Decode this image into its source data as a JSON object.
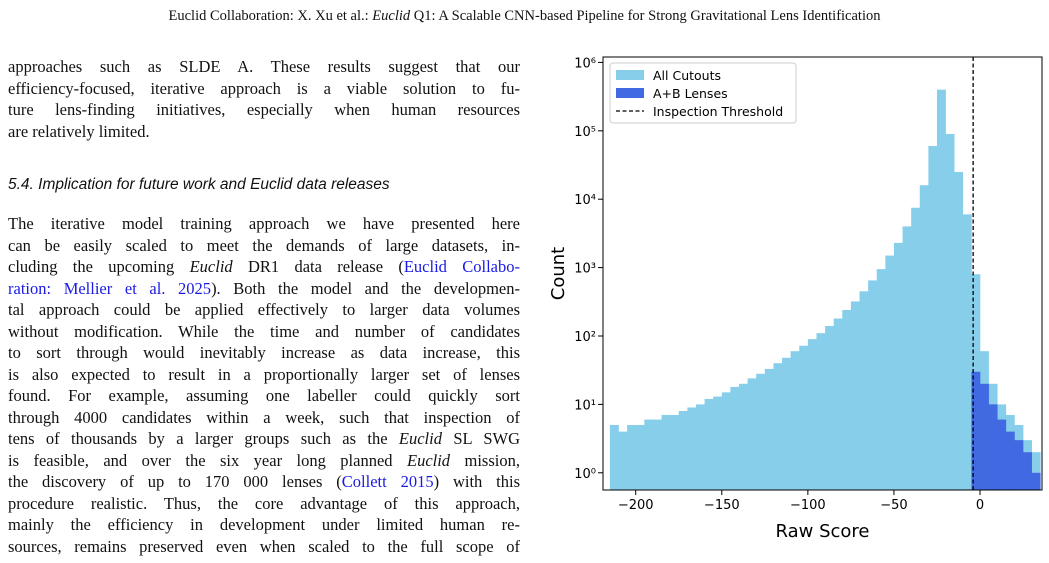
{
  "document": {
    "header": [
      "Euclid Collaboration: X. Xu et al.: ",
      {
        "text": "Euclid",
        "style": "italic"
      },
      " Q1: A Scalable CNN-based Pipeline for Strong Gravitational Lens Identification"
    ],
    "paragraph_1": [
      [
        "approaches such as SLDE A. These results suggest that our"
      ],
      [
        "efficiency-focused, iterative approach is a viable solution to fu-"
      ],
      [
        "ture lens-finding initiatives, especially when human resources"
      ],
      [
        "are relatively limited."
      ]
    ],
    "heading": "5.4. Implication for future work and Euclid data releases",
    "paragraph_2": [
      [
        "The iterative model training approach we have presented here"
      ],
      [
        "can be easily scaled to meet the demands of large datasets, in-"
      ],
      [
        "cluding the upcoming ",
        {
          "text": "Euclid",
          "style": "italic"
        },
        " DR1 data release (",
        {
          "text": "Euclid Collabo-",
          "style": "link"
        }
      ],
      [
        {
          "text": "ration: Mellier et al. 2025",
          "style": "link"
        },
        "). Both the model and the developmen-"
      ],
      [
        "tal approach could be applied effectively to larger data volumes"
      ],
      [
        "without modification. While the time and number of candidates"
      ],
      [
        "to sort through would inevitably increase as data increase, this"
      ],
      [
        "is also expected to result in a proportionally larger set of lenses"
      ],
      [
        "found. For example, assuming one labeller could quickly sort"
      ],
      [
        "through 4000 candidates within a week, such that inspection of"
      ],
      [
        "tens of thousands by a larger groups such as the ",
        {
          "text": "Euclid",
          "style": "italic"
        },
        " SL SWG"
      ],
      [
        "is feasible, and over the six year long planned ",
        {
          "text": "Euclid",
          "style": "italic"
        },
        " mission,"
      ],
      [
        "the discovery of up to 170 000 lenses (",
        {
          "text": "Collett 2015",
          "style": "link"
        },
        ") with this"
      ],
      [
        "procedure realistic. Thus, the core advantage of this approach,"
      ],
      [
        "mainly the efficiency in development under limited human re-"
      ],
      [
        "sources, remains preserved even when scaled to the full scope of"
      ]
    ]
  },
  "chart_data": {
    "type": "histogram",
    "xlabel": "Raw Score",
    "ylabel": "Count",
    "log_y": true,
    "legend": "upper left",
    "xlim": [
      -219,
      36
    ],
    "ylim": [
      0.56,
      1200000
    ],
    "xticks": [
      {
        "value": -200,
        "label": "−200"
      },
      {
        "value": -150,
        "label": "−150"
      },
      {
        "value": -100,
        "label": "−100"
      },
      {
        "value": -50,
        "label": "−50"
      },
      0
    ],
    "yticks": [
      {
        "value": 1,
        "label": "10⁰"
      },
      {
        "value": 10,
        "label": "10¹"
      },
      {
        "value": 100,
        "label": "10²"
      },
      {
        "value": 1000,
        "label": "10³"
      },
      {
        "value": 10000,
        "label": "10⁴"
      },
      {
        "value": 100000,
        "label": "10⁵"
      },
      {
        "value": 1000000,
        "label": "10⁶"
      }
    ],
    "series": [
      {
        "name": "All Cutouts",
        "color": "#87ceeb",
        "bins": [
          -215,
          -210,
          -205,
          -200,
          -195,
          -190,
          -185,
          -180,
          -175,
          -170,
          -165,
          -160,
          -155,
          -150,
          -145,
          -140,
          -135,
          -130,
          -125,
          -120,
          -115,
          -110,
          -105,
          -100,
          -95,
          -90,
          -85,
          -80,
          -75,
          -70,
          -65,
          -60,
          -55,
          -50,
          -45,
          -40,
          -35,
          -30,
          -25,
          -20,
          -15,
          -10,
          -5,
          0,
          5,
          10,
          15,
          20,
          25,
          30,
          35
        ],
        "values": [
          5,
          4,
          5,
          5,
          6,
          6,
          7,
          7,
          8,
          9,
          10,
          12,
          13,
          15,
          18,
          20,
          24,
          28,
          33,
          40,
          48,
          60,
          72,
          90,
          110,
          140,
          180,
          240,
          320,
          450,
          650,
          950,
          1500,
          2300,
          4000,
          7500,
          16000,
          60000,
          400000,
          90000,
          25000,
          6000,
          800,
          60,
          20,
          10,
          7,
          5,
          3,
          2
        ]
      },
      {
        "name": "A+B Lenses",
        "color": "#4169e1",
        "bins": [
          -5,
          0,
          5,
          10,
          15,
          20,
          25,
          30,
          35
        ],
        "values": [
          30,
          20,
          10,
          6,
          4,
          3,
          2,
          1
        ]
      }
    ],
    "threshold": {
      "name": "Inspection Threshold",
      "value": -4,
      "color": "#000000"
    }
  }
}
